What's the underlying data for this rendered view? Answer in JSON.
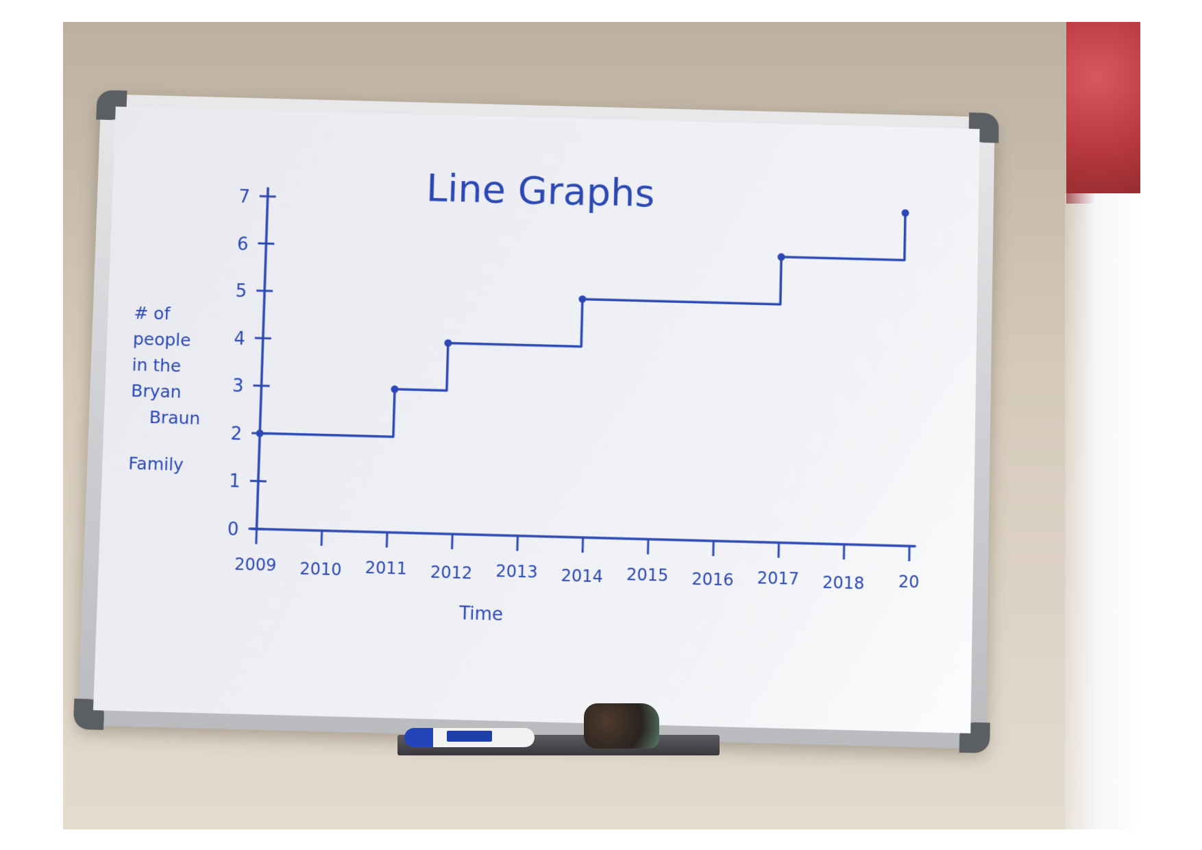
{
  "chart_data": {
    "type": "line",
    "title": "Line Graphs",
    "xlabel": "Time",
    "ylabel_lines": [
      "# of",
      "people",
      "in the",
      "Bryan",
      "Braun",
      "Family"
    ],
    "x_ticks": [
      "2009",
      "2010",
      "2011",
      "2012",
      "2013",
      "2014",
      "2015",
      "2016",
      "2017",
      "2018",
      "20"
    ],
    "y_ticks": [
      "0",
      "1",
      "2",
      "3",
      "4",
      "5",
      "6",
      "7"
    ],
    "xlim": [
      2009,
      2019
    ],
    "ylim": [
      0,
      7
    ],
    "step": true,
    "series": [
      {
        "points": [
          {
            "x": 2009,
            "y": 2
          },
          {
            "x": 2011.05,
            "y": 3
          },
          {
            "x": 2011.85,
            "y": 4
          },
          {
            "x": 2013.9,
            "y": 5
          },
          {
            "x": 2016.95,
            "y": 6
          },
          {
            "x": 2018.85,
            "y": 7
          }
        ]
      }
    ],
    "grid": false,
    "ink_color": "#2c48b2"
  }
}
